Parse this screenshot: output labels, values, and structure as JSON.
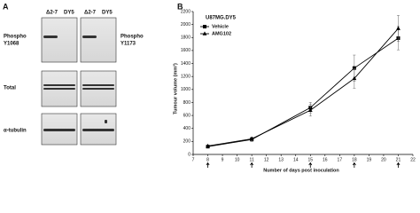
{
  "panel_a": {
    "label": "A",
    "columns": [
      [
        "Δ2-7",
        "DY5"
      ],
      [
        "Δ2-7",
        "DY5"
      ]
    ],
    "rows": [
      [
        "Phospho",
        "Y1068"
      ],
      [
        "Total"
      ],
      [
        "α-tubulin"
      ]
    ],
    "right_label": [
      "Phospho",
      "Y1173"
    ]
  },
  "chart_data": {
    "type": "line",
    "panel_label": "B",
    "title": "U87MG.DY5",
    "x_label": "Number of days post inoculation",
    "y_label": "Tumour volume (mm³)",
    "x": [
      8,
      11,
      15,
      18,
      21
    ],
    "series": [
      {
        "name": "Vehicle",
        "marker": "square",
        "color": "#000000",
        "values": [
          120,
          230,
          720,
          1330,
          1790
        ],
        "errors": [
          15,
          30,
          80,
          200,
          180
        ]
      },
      {
        "name": "AMG102",
        "marker": "triangle",
        "color": "#000000",
        "values": [
          130,
          240,
          680,
          1170,
          1940
        ],
        "errors": [
          15,
          30,
          90,
          150,
          200
        ]
      }
    ],
    "xlim": [
      7,
      22
    ],
    "xticks": [
      7,
      8,
      9,
      10,
      11,
      12,
      13,
      14,
      15,
      16,
      17,
      18,
      19,
      20,
      21,
      22
    ],
    "ylim": [
      0,
      2200
    ],
    "yticks": [
      0,
      200,
      400,
      600,
      800,
      1000,
      1200,
      1400,
      1600,
      1800,
      2000,
      2200
    ],
    "legend": "upper left",
    "arrows": true
  }
}
